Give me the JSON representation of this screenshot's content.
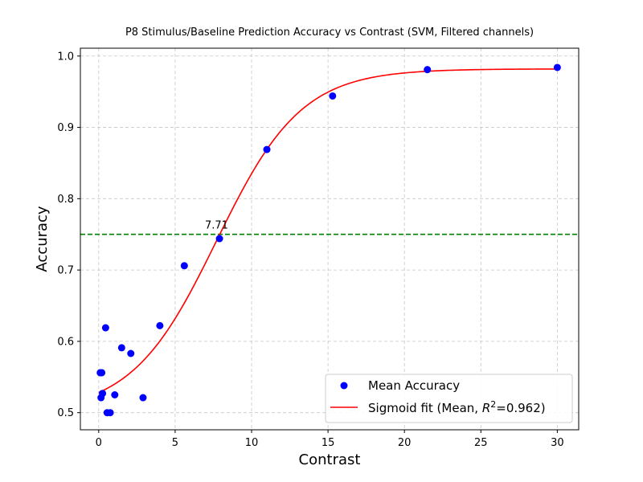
{
  "chart_data": {
    "type": "scatter",
    "title": "P8 Stimulus/Baseline Prediction Accuracy vs Contrast (SVM, Filtered channels)",
    "xlabel": "Contrast",
    "ylabel": "Accuracy",
    "xlim": [
      -1.2,
      31.4
    ],
    "ylim": [
      0.476,
      1.011
    ],
    "xticks": [
      0,
      5,
      10,
      15,
      20,
      25,
      30
    ],
    "yticks": [
      0.5,
      0.6,
      0.7,
      0.8,
      0.9,
      1.0
    ],
    "xtick_labels": [
      "0",
      "5",
      "10",
      "15",
      "20",
      "25",
      "30"
    ],
    "ytick_labels": [
      "0.5",
      "0.6",
      "0.7",
      "0.8",
      "0.9",
      "1.0"
    ],
    "grid": true,
    "series": [
      {
        "name": "Mean Accuracy",
        "kind": "scatter",
        "color": "#0000ff",
        "points": [
          {
            "x": 0.1,
            "y": 0.556
          },
          {
            "x": 0.2,
            "y": 0.556
          },
          {
            "x": 0.15,
            "y": 0.521
          },
          {
            "x": 0.25,
            "y": 0.527
          },
          {
            "x": 0.45,
            "y": 0.619
          },
          {
            "x": 0.55,
            "y": 0.5
          },
          {
            "x": 0.75,
            "y": 0.5
          },
          {
            "x": 1.05,
            "y": 0.525
          },
          {
            "x": 1.5,
            "y": 0.591
          },
          {
            "x": 2.1,
            "y": 0.583
          },
          {
            "x": 2.9,
            "y": 0.521
          },
          {
            "x": 4.0,
            "y": 0.622
          },
          {
            "x": 5.6,
            "y": 0.706
          },
          {
            "x": 7.9,
            "y": 0.744
          },
          {
            "x": 11.0,
            "y": 0.869
          },
          {
            "x": 15.3,
            "y": 0.944
          },
          {
            "x": 21.5,
            "y": 0.981
          },
          {
            "x": 30.0,
            "y": 0.984
          }
        ]
      },
      {
        "name": "Sigmoid fit (Mean, R²=0.962)",
        "kind": "line",
        "color": "#ff0000",
        "curve": {
          "y0": 0.5,
          "ymax": 0.982,
          "x_mid": 7.71,
          "k": 0.36,
          "x_start": 0.0,
          "x_end": 30.0
        }
      }
    ],
    "threshold_line": {
      "y": 0.75,
      "color": "#008000",
      "style": "dashed"
    },
    "annotations": [
      {
        "x": 7.71,
        "y": 0.75,
        "text": "7.71"
      }
    ],
    "legend": {
      "placement": "bottom-right",
      "entries": [
        {
          "label_main": "Mean Accuracy",
          "marker": "dot",
          "color": "#0000ff"
        },
        {
          "label_main": "Sigmoid fit (Mean, ",
          "label_r": "R",
          "label_sup": "2",
          "label_tail": "=0.962)",
          "marker": "line",
          "color": "#ff0000"
        }
      ]
    }
  }
}
